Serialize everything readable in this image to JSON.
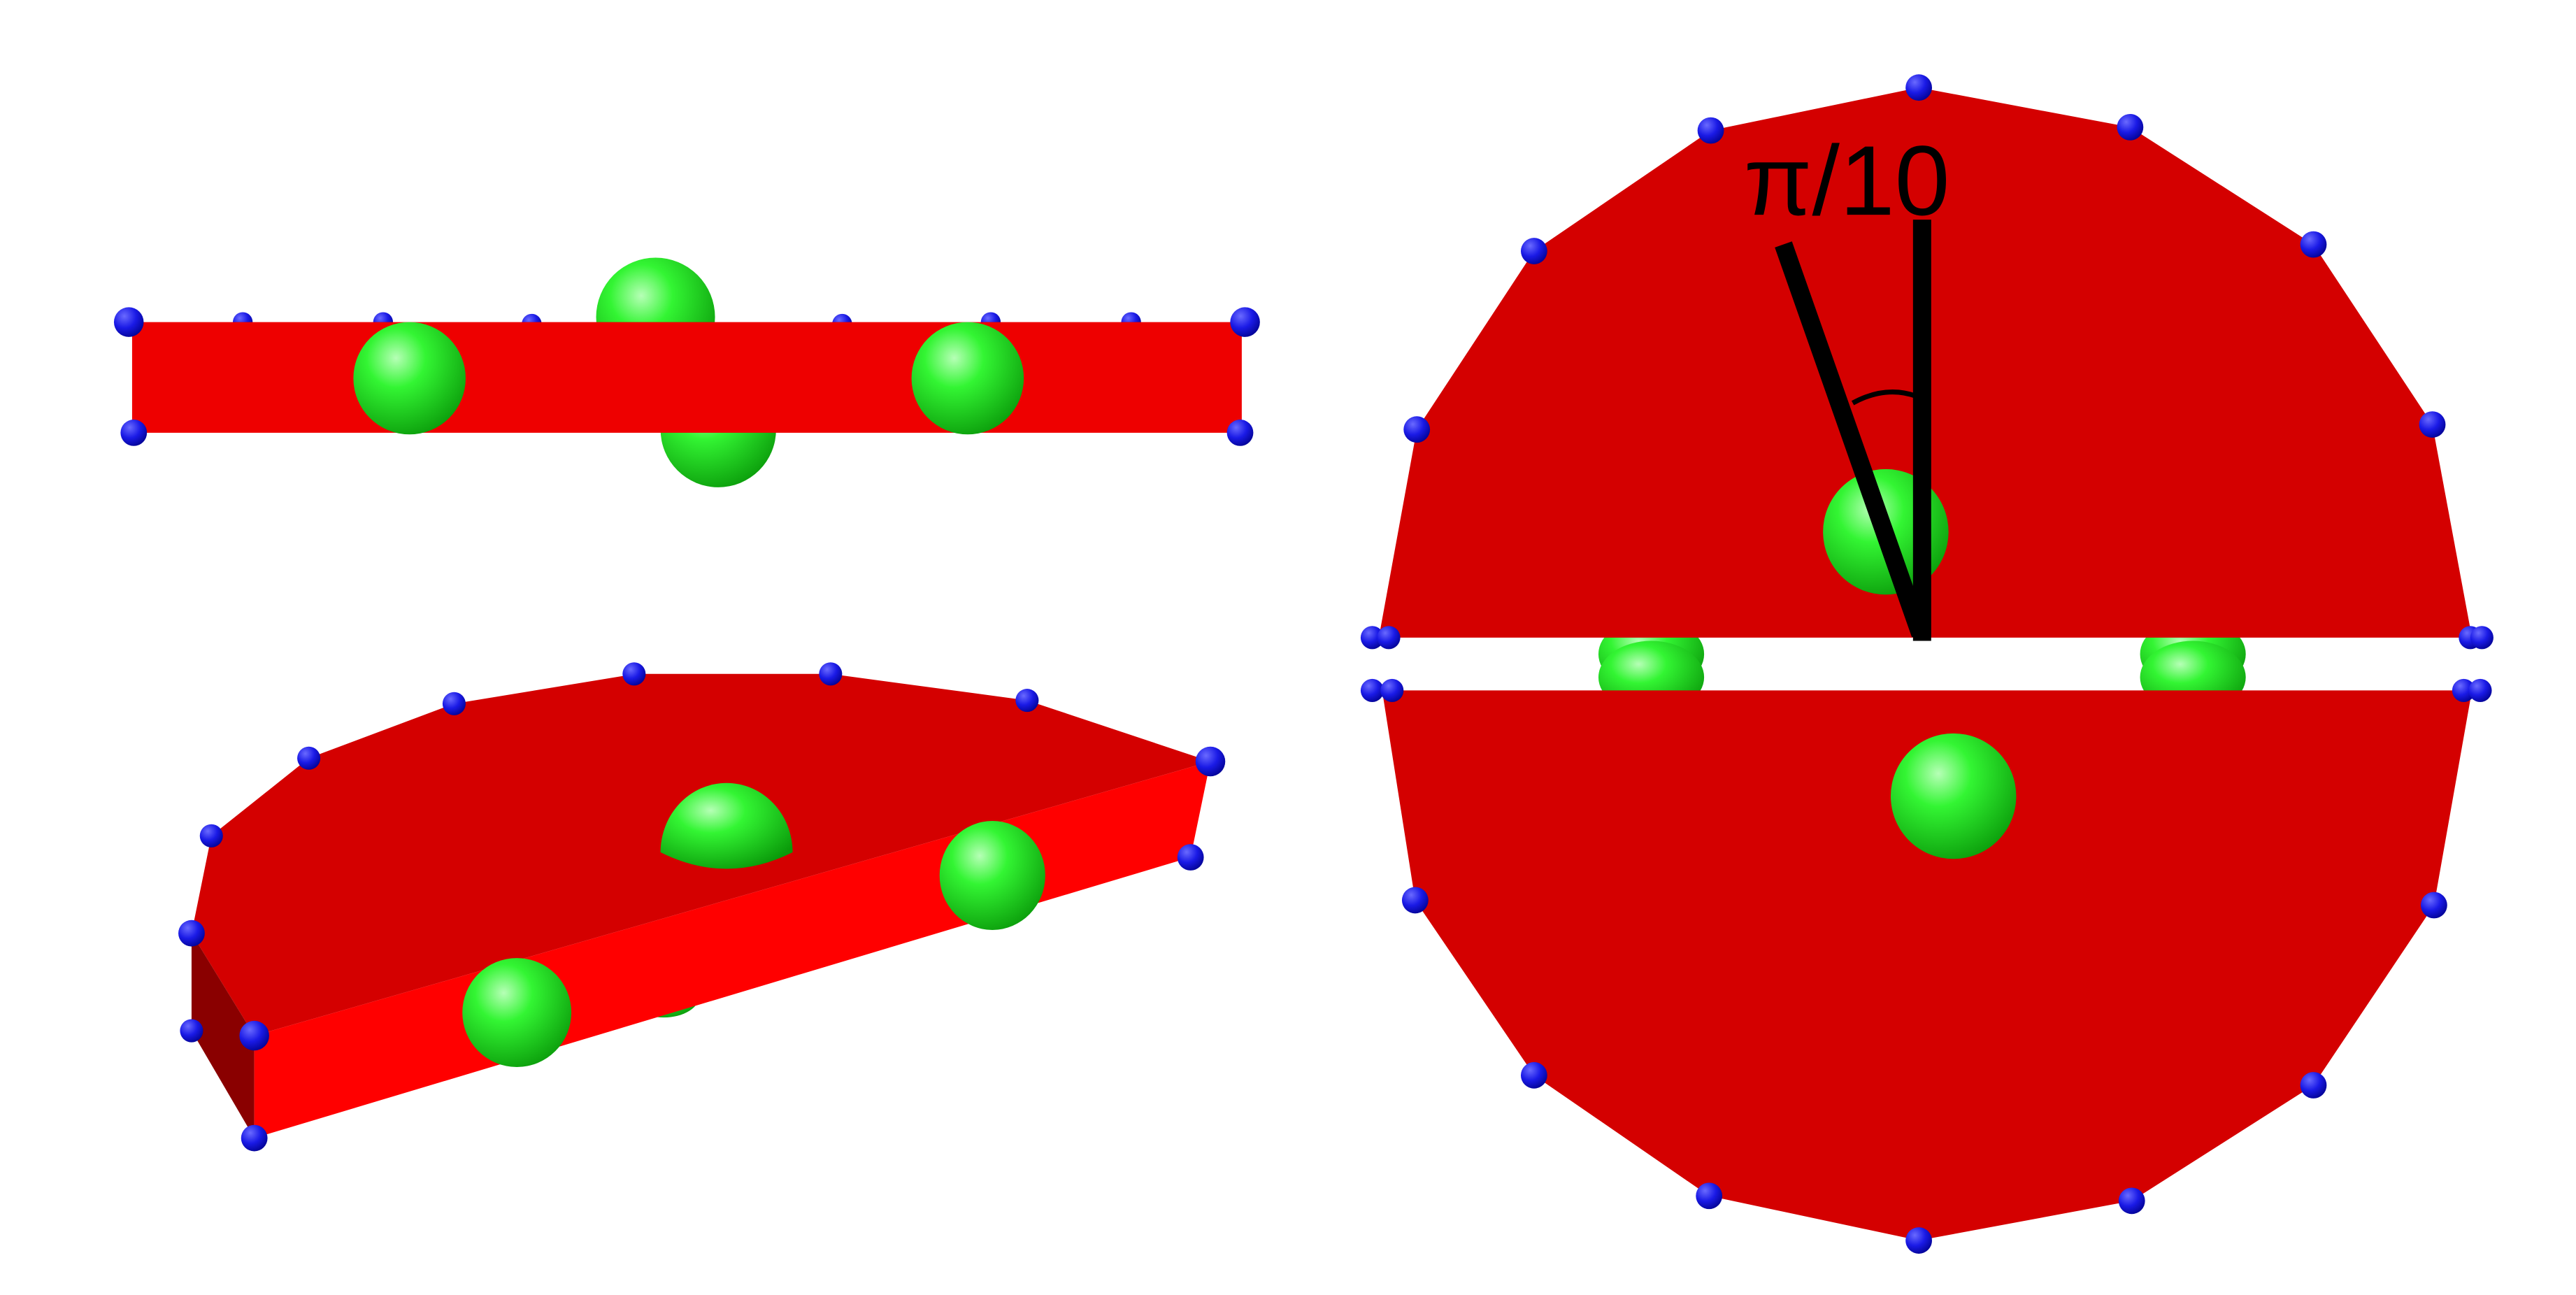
{
  "annotation": {
    "angle_label": "π/10"
  },
  "colors": {
    "slab_face": "#d40000",
    "slab_side": "#ee0000",
    "slab_dark": "#8a0000",
    "vertex": "#1010dd",
    "sphere": "#22ee22",
    "angle_line": "#000000",
    "background": "#ffffff"
  }
}
